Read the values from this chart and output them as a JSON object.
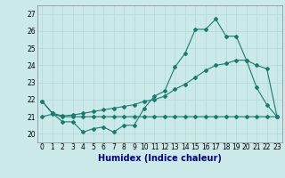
{
  "title": "",
  "xlabel": "Humidex (Indice chaleur)",
  "ylabel": "",
  "bg_color": "#cce9ea",
  "line_color": "#1a7a6e",
  "grid_color": "#b0d8d8",
  "xlim": [
    -0.5,
    23.5
  ],
  "ylim": [
    19.5,
    27.5
  ],
  "yticks": [
    20,
    21,
    22,
    23,
    24,
    25,
    26,
    27
  ],
  "xticks": [
    0,
    1,
    2,
    3,
    4,
    5,
    6,
    7,
    8,
    9,
    10,
    11,
    12,
    13,
    14,
    15,
    16,
    17,
    18,
    19,
    20,
    21,
    22,
    23
  ],
  "line1_x": [
    0,
    1,
    2,
    3,
    4,
    5,
    6,
    7,
    8,
    9,
    10,
    11,
    12,
    13,
    14,
    15,
    16,
    17,
    18,
    19,
    20,
    21,
    22,
    23
  ],
  "line1_y": [
    21.9,
    21.2,
    20.7,
    20.7,
    20.1,
    20.3,
    20.4,
    20.1,
    20.5,
    20.5,
    21.5,
    22.2,
    22.5,
    23.9,
    24.7,
    26.1,
    26.1,
    26.7,
    25.7,
    25.7,
    24.3,
    22.7,
    21.7,
    21.0
  ],
  "line2_x": [
    0,
    1,
    2,
    3,
    4,
    5,
    6,
    7,
    8,
    9,
    10,
    11,
    12,
    13,
    14,
    15,
    16,
    17,
    18,
    19,
    20,
    21,
    22,
    23
  ],
  "line2_y": [
    21.9,
    21.2,
    21.05,
    21.1,
    21.2,
    21.3,
    21.4,
    21.5,
    21.6,
    21.7,
    21.9,
    22.0,
    22.2,
    22.6,
    22.9,
    23.3,
    23.7,
    24.0,
    24.1,
    24.3,
    24.3,
    24.0,
    23.8,
    21.0
  ],
  "line3_x": [
    0,
    1,
    2,
    3,
    4,
    5,
    6,
    7,
    8,
    9,
    10,
    11,
    12,
    13,
    14,
    15,
    16,
    17,
    18,
    19,
    20,
    21,
    22,
    23
  ],
  "line3_y": [
    21.0,
    21.15,
    21.0,
    21.0,
    21.0,
    21.0,
    21.0,
    21.0,
    21.0,
    21.0,
    21.0,
    21.0,
    21.0,
    21.0,
    21.0,
    21.0,
    21.0,
    21.0,
    21.0,
    21.0,
    21.0,
    21.0,
    21.0,
    21.0
  ],
  "xlabel_color": "#000080",
  "tick_fontsize": 5.5,
  "xlabel_fontsize": 7
}
